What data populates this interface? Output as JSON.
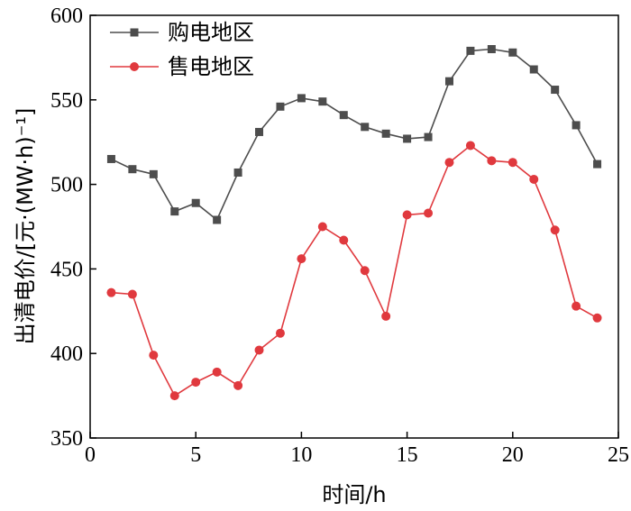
{
  "chart_data": {
    "type": "line",
    "xlabel": "时间/h",
    "ylabel": "出清电价/[元·(MW·h)⁻¹]",
    "xlim": [
      0,
      25
    ],
    "ylim": [
      350,
      600
    ],
    "xticks": [
      0,
      5,
      10,
      15,
      20,
      25
    ],
    "yticks": [
      350,
      400,
      450,
      500,
      550,
      600
    ],
    "grid": false,
    "legend_position": "top-left",
    "x": [
      1,
      2,
      3,
      4,
      5,
      6,
      7,
      8,
      9,
      10,
      11,
      12,
      13,
      14,
      15,
      16,
      17,
      18,
      19,
      20,
      21,
      22,
      23,
      24
    ],
    "series": [
      {
        "name": "购电地区",
        "marker": "square",
        "color": "#4d4d4d",
        "values": [
          515,
          509,
          506,
          484,
          489,
          479,
          507,
          531,
          546,
          551,
          549,
          541,
          534,
          530,
          527,
          528,
          561,
          579,
          580,
          578,
          568,
          556,
          535,
          512
        ]
      },
      {
        "name": "售电地区",
        "marker": "circle",
        "color": "#e0393e",
        "values": [
          436,
          435,
          399,
          375,
          383,
          389,
          381,
          402,
          412,
          456,
          475,
          467,
          449,
          422,
          482,
          483,
          513,
          523,
          514,
          513,
          503,
          473,
          428,
          421
        ]
      }
    ]
  }
}
